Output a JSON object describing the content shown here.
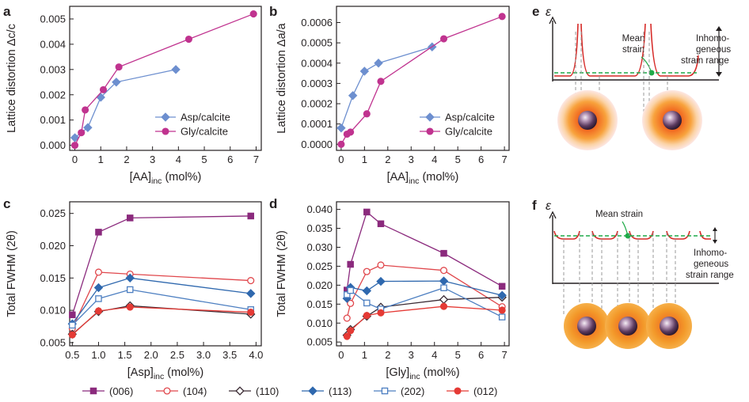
{
  "colors": {
    "purple": "#8b2a7d",
    "pink_red": "#e0474c",
    "dark": "#3a2a33",
    "blue_dark": "#2f68ae",
    "blue_light": "#4d7fc1",
    "magenta": "#c0338f",
    "asp_blue": "#6d8fcf",
    "red": "#e53a35",
    "green": "#1faa48",
    "axis": "#231f20",
    "guide": "#9a9a9a"
  },
  "chart_data": [
    {
      "panel": "a",
      "type": "line",
      "xlabel": "[AA]",
      "xlabel_sub": "inc",
      "xlabel_unit": " (mol%)",
      "ylabel": "Lattice distortion Δc/c",
      "xlim": [
        -0.2,
        7.2
      ],
      "ylim": [
        -0.0002,
        0.0055
      ],
      "xticks": [
        "0",
        "1",
        "2",
        "3",
        "4",
        "5",
        "6",
        "7"
      ],
      "yticks": [
        "0.000",
        "0.001",
        "0.002",
        "0.003",
        "0.004",
        "0.005"
      ],
      "series": [
        {
          "name": "Asp/calcite",
          "marker": "diamond",
          "color": "#6d8fcf",
          "x": [
            0.0,
            0.5,
            1.0,
            1.6,
            3.9
          ],
          "y": [
            0.0003,
            0.0007,
            0.0019,
            0.0025,
            0.003
          ]
        },
        {
          "name": "Gly/calcite",
          "marker": "circle",
          "color": "#c0338f",
          "x": [
            0.0,
            0.25,
            0.4,
            1.1,
            1.7,
            4.4,
            6.9
          ],
          "y": [
            0.0,
            0.0005,
            0.0014,
            0.0022,
            0.0031,
            0.0042,
            0.0052
          ]
        }
      ]
    },
    {
      "panel": "b",
      "type": "line",
      "xlabel": "[AA]",
      "xlabel_sub": "inc",
      "xlabel_unit": " (mol%)",
      "ylabel": "Lattice distortion Δa/a",
      "xlim": [
        -0.2,
        7.2
      ],
      "ylim": [
        -3e-05,
        0.00068
      ],
      "xticks": [
        "0",
        "1",
        "2",
        "3",
        "4",
        "5",
        "6",
        "7"
      ],
      "yticks": [
        "0.0000",
        "0.0001",
        "0.0002",
        "0.0003",
        "0.0004",
        "0.0005",
        "0.0006"
      ],
      "series": [
        {
          "name": "Asp/calcite",
          "marker": "diamond",
          "color": "#6d8fcf",
          "x": [
            0.0,
            0.5,
            1.0,
            1.6,
            3.9
          ],
          "y": [
            8e-05,
            0.00024,
            0.00036,
            0.0004,
            0.00048
          ]
        },
        {
          "name": "Gly/calcite",
          "marker": "circle",
          "color": "#c0338f",
          "x": [
            0.0,
            0.25,
            0.4,
            1.1,
            1.7,
            4.4,
            6.9
          ],
          "y": [
            0.0,
            5e-05,
            6e-05,
            0.00015,
            0.00031,
            0.00052,
            0.00063
          ]
        }
      ]
    },
    {
      "panel": "c",
      "type": "line",
      "xlabel": "[Asp]",
      "xlabel_sub": "inc",
      "xlabel_unit": " (mol%)",
      "ylabel": "Total FWHM (2θ)",
      "xlim": [
        0.45,
        4.1
      ],
      "ylim": [
        0.0045,
        0.0268
      ],
      "xticks": [
        "0.5",
        "1.0",
        "1.5",
        "2.0",
        "2.5",
        "3.0",
        "3.5",
        "4.0"
      ],
      "yticks": [
        "0.005",
        "0.010",
        "0.015",
        "0.020",
        "0.025"
      ],
      "x": [
        0.5,
        1.0,
        1.6,
        3.9
      ],
      "series": [
        {
          "name": "(006)",
          "marker": "square",
          "fill": "#8b2a7d",
          "color": "#8b2a7d",
          "y": [
            0.0093,
            0.0221,
            0.0243,
            0.0246
          ]
        },
        {
          "name": "(104)",
          "marker": "circle-open",
          "color": "#e0474c",
          "y": [
            0.0072,
            0.0159,
            0.0156,
            0.0146
          ]
        },
        {
          "name": "(110)",
          "marker": "diamond-open",
          "color": "#3a2a33",
          "y": [
            0.0063,
            0.0098,
            0.0107,
            0.0094
          ]
        },
        {
          "name": "(113)",
          "marker": "diamond",
          "fill": "#2f68ae",
          "color": "#2f68ae",
          "y": [
            0.0079,
            0.0135,
            0.015,
            0.0126
          ]
        },
        {
          "name": "(202)",
          "marker": "square-open",
          "color": "#4d7fc1",
          "y": [
            0.0077,
            0.0118,
            0.0132,
            0.0101
          ]
        },
        {
          "name": "(012)",
          "marker": "circle",
          "fill": "#e53a35",
          "color": "#e53a35",
          "y": [
            0.0062,
            0.0099,
            0.0105,
            0.0097
          ]
        }
      ]
    },
    {
      "panel": "d",
      "type": "line",
      "xlabel": "[Gly]",
      "xlabel_sub": "inc",
      "xlabel_unit": " (mol%)",
      "ylabel": "Total FWHM (2θ)",
      "xlim": [
        -0.2,
        7.2
      ],
      "ylim": [
        0.004,
        0.042
      ],
      "xticks": [
        "0",
        "1",
        "2",
        "3",
        "4",
        "5",
        "6",
        "7"
      ],
      "yticks": [
        "0.005",
        "0.010",
        "0.015",
        "0.020",
        "0.025",
        "0.030",
        "0.035",
        "0.040"
      ],
      "x": [
        0.25,
        0.4,
        1.1,
        1.7,
        4.4,
        6.9
      ],
      "series": [
        {
          "name": "(006)",
          "marker": "square",
          "fill": "#8b2a7d",
          "color": "#8b2a7d",
          "y": [
            0.0187,
            0.0255,
            0.0393,
            0.0362,
            0.0284,
            0.0197
          ]
        },
        {
          "name": "(104)",
          "marker": "circle-open",
          "color": "#e0474c",
          "y": [
            0.0113,
            0.0152,
            0.0236,
            0.0253,
            0.0239,
            0.0143
          ]
        },
        {
          "name": "(110)",
          "marker": "diamond-open",
          "color": "#3a2a33",
          "y": [
            0.0068,
            0.0083,
            0.0118,
            0.0142,
            0.0162,
            0.0168
          ]
        },
        {
          "name": "(113)",
          "marker": "diamond",
          "fill": "#2f68ae",
          "color": "#2f68ae",
          "y": [
            0.0165,
            0.0194,
            0.0185,
            0.021,
            0.0211,
            0.0173
          ]
        },
        {
          "name": "(202)",
          "marker": "square-open",
          "color": "#4d7fc1",
          "y": [
            0.0175,
            0.0186,
            0.0153,
            0.0137,
            0.0193,
            0.0116
          ]
        },
        {
          "name": "(012)",
          "marker": "circle",
          "fill": "#e53a35",
          "color": "#e53a35",
          "y": [
            0.0065,
            0.008,
            0.012,
            0.0127,
            0.0144,
            0.0134
          ]
        }
      ]
    }
  ],
  "legend_bottom": [
    "(006)",
    "(104)",
    "(110)",
    "(113)",
    "(202)",
    "(012)"
  ],
  "schematic_e": {
    "letter": "e",
    "epsilon": "ε",
    "mean_strain_l1": "Mean",
    "mean_strain_l2": "strain",
    "range_l1": "Inhomo-",
    "range_l2": "geneous",
    "range_l3": "strain range"
  },
  "schematic_f": {
    "letter": "f",
    "epsilon": "ε",
    "mean_strain": "Mean strain",
    "range_l1": "Inhomo-",
    "range_l2": "geneous",
    "range_l3": "strain range"
  }
}
